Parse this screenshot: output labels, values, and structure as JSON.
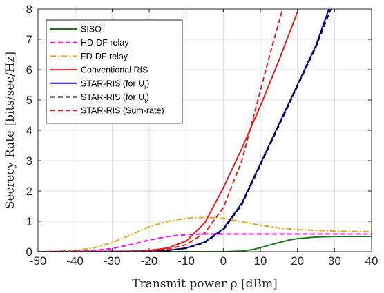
{
  "chart_data": {
    "type": "line",
    "title": "",
    "xlabel": "Transmit power ρ [dBm]",
    "ylabel": "Secrecy Rate [bits/sec/Hz]",
    "xlim": [
      -50,
      40
    ],
    "ylim": [
      0,
      8
    ],
    "xticks": [
      -50,
      -40,
      -30,
      -20,
      -10,
      0,
      10,
      20,
      30,
      40
    ],
    "yticks": [
      0,
      1,
      2,
      3,
      4,
      5,
      6,
      7,
      8
    ],
    "grid": true,
    "legend_position": "top-left",
    "series": [
      {
        "name": "SISO",
        "color": "#1a7a1a",
        "dash": "solid",
        "x": [
          -50,
          -20,
          0,
          5,
          8,
          10,
          12,
          15,
          18,
          20,
          25,
          30,
          40
        ],
        "y": [
          0,
          0,
          0,
          0.02,
          0.07,
          0.13,
          0.2,
          0.3,
          0.39,
          0.43,
          0.48,
          0.5,
          0.5
        ]
      },
      {
        "name": "HD-DF relay",
        "color": "#ff00ff",
        "dash": "dashed",
        "x": [
          -50,
          -40,
          -35,
          -30,
          -25,
          -20,
          -15,
          -10,
          -5,
          0,
          10,
          20,
          30,
          40
        ],
        "y": [
          0,
          0.01,
          0.04,
          0.1,
          0.23,
          0.38,
          0.5,
          0.56,
          0.58,
          0.58,
          0.58,
          0.58,
          0.58,
          0.58
        ]
      },
      {
        "name": "FD-DF relay",
        "color": "#e8a317",
        "dash": "dashdot",
        "x": [
          -50,
          -45,
          -40,
          -35,
          -30,
          -25,
          -20,
          -15,
          -10,
          -5,
          0,
          5,
          10,
          15,
          20,
          25,
          30,
          35,
          40
        ],
        "y": [
          0,
          0.01,
          0.04,
          0.12,
          0.3,
          0.55,
          0.82,
          1.0,
          1.1,
          1.13,
          1.1,
          0.98,
          0.87,
          0.78,
          0.73,
          0.7,
          0.68,
          0.67,
          0.66
        ]
      },
      {
        "name": "Conventional RIS",
        "color": "#e41a1c",
        "dash": "solid",
        "x": [
          -50,
          -25,
          -20,
          -15,
          -10,
          -5,
          0,
          5,
          10,
          15,
          20
        ],
        "y": [
          0,
          0.01,
          0.04,
          0.12,
          0.35,
          0.95,
          2.1,
          3.4,
          4.8,
          6.3,
          7.9
        ]
      },
      {
        "name": "STAR-RIS (for U_r)",
        "color": "#0000cc",
        "dash": "solid",
        "x": [
          -50,
          -20,
          -15,
          -10,
          -5,
          0,
          5,
          10,
          15,
          20,
          25,
          28.5
        ],
        "y": [
          0,
          0.01,
          0.04,
          0.12,
          0.32,
          0.75,
          1.6,
          2.9,
          4.2,
          5.5,
          6.8,
          8.0
        ]
      },
      {
        "name": "STAR-RIS (for U_t)",
        "color": "#000000",
        "dash": "dashed",
        "x": [
          -50,
          -20,
          -15,
          -10,
          -5,
          0,
          5,
          10,
          15,
          20,
          25,
          29
        ],
        "y": [
          0,
          0.01,
          0.04,
          0.11,
          0.3,
          0.72,
          1.55,
          2.85,
          4.15,
          5.45,
          6.75,
          8.0
        ]
      },
      {
        "name": "STAR-RIS (Sum-rate)",
        "color": "#e41a1c",
        "dash": "dashed",
        "x": [
          -50,
          -20,
          -15,
          -10,
          -5,
          0,
          5,
          10,
          13,
          16
        ],
        "y": [
          0,
          0.02,
          0.08,
          0.23,
          0.62,
          1.45,
          3.0,
          5.3,
          6.7,
          8.0
        ]
      }
    ]
  },
  "legend": {
    "entries": [
      {
        "text": "SISO",
        "sub": ""
      },
      {
        "text": "HD-DF relay",
        "sub": ""
      },
      {
        "text": "FD-DF relay",
        "sub": ""
      },
      {
        "text": "Conventional RIS",
        "sub": ""
      },
      {
        "text": "STAR-RIS (for U",
        "sub": "r",
        "close": ")"
      },
      {
        "text": "STAR-RIS (for U",
        "sub": "t",
        "close": ")"
      },
      {
        "text": "STAR-RIS (Sum-rate)",
        "sub": ""
      }
    ]
  }
}
